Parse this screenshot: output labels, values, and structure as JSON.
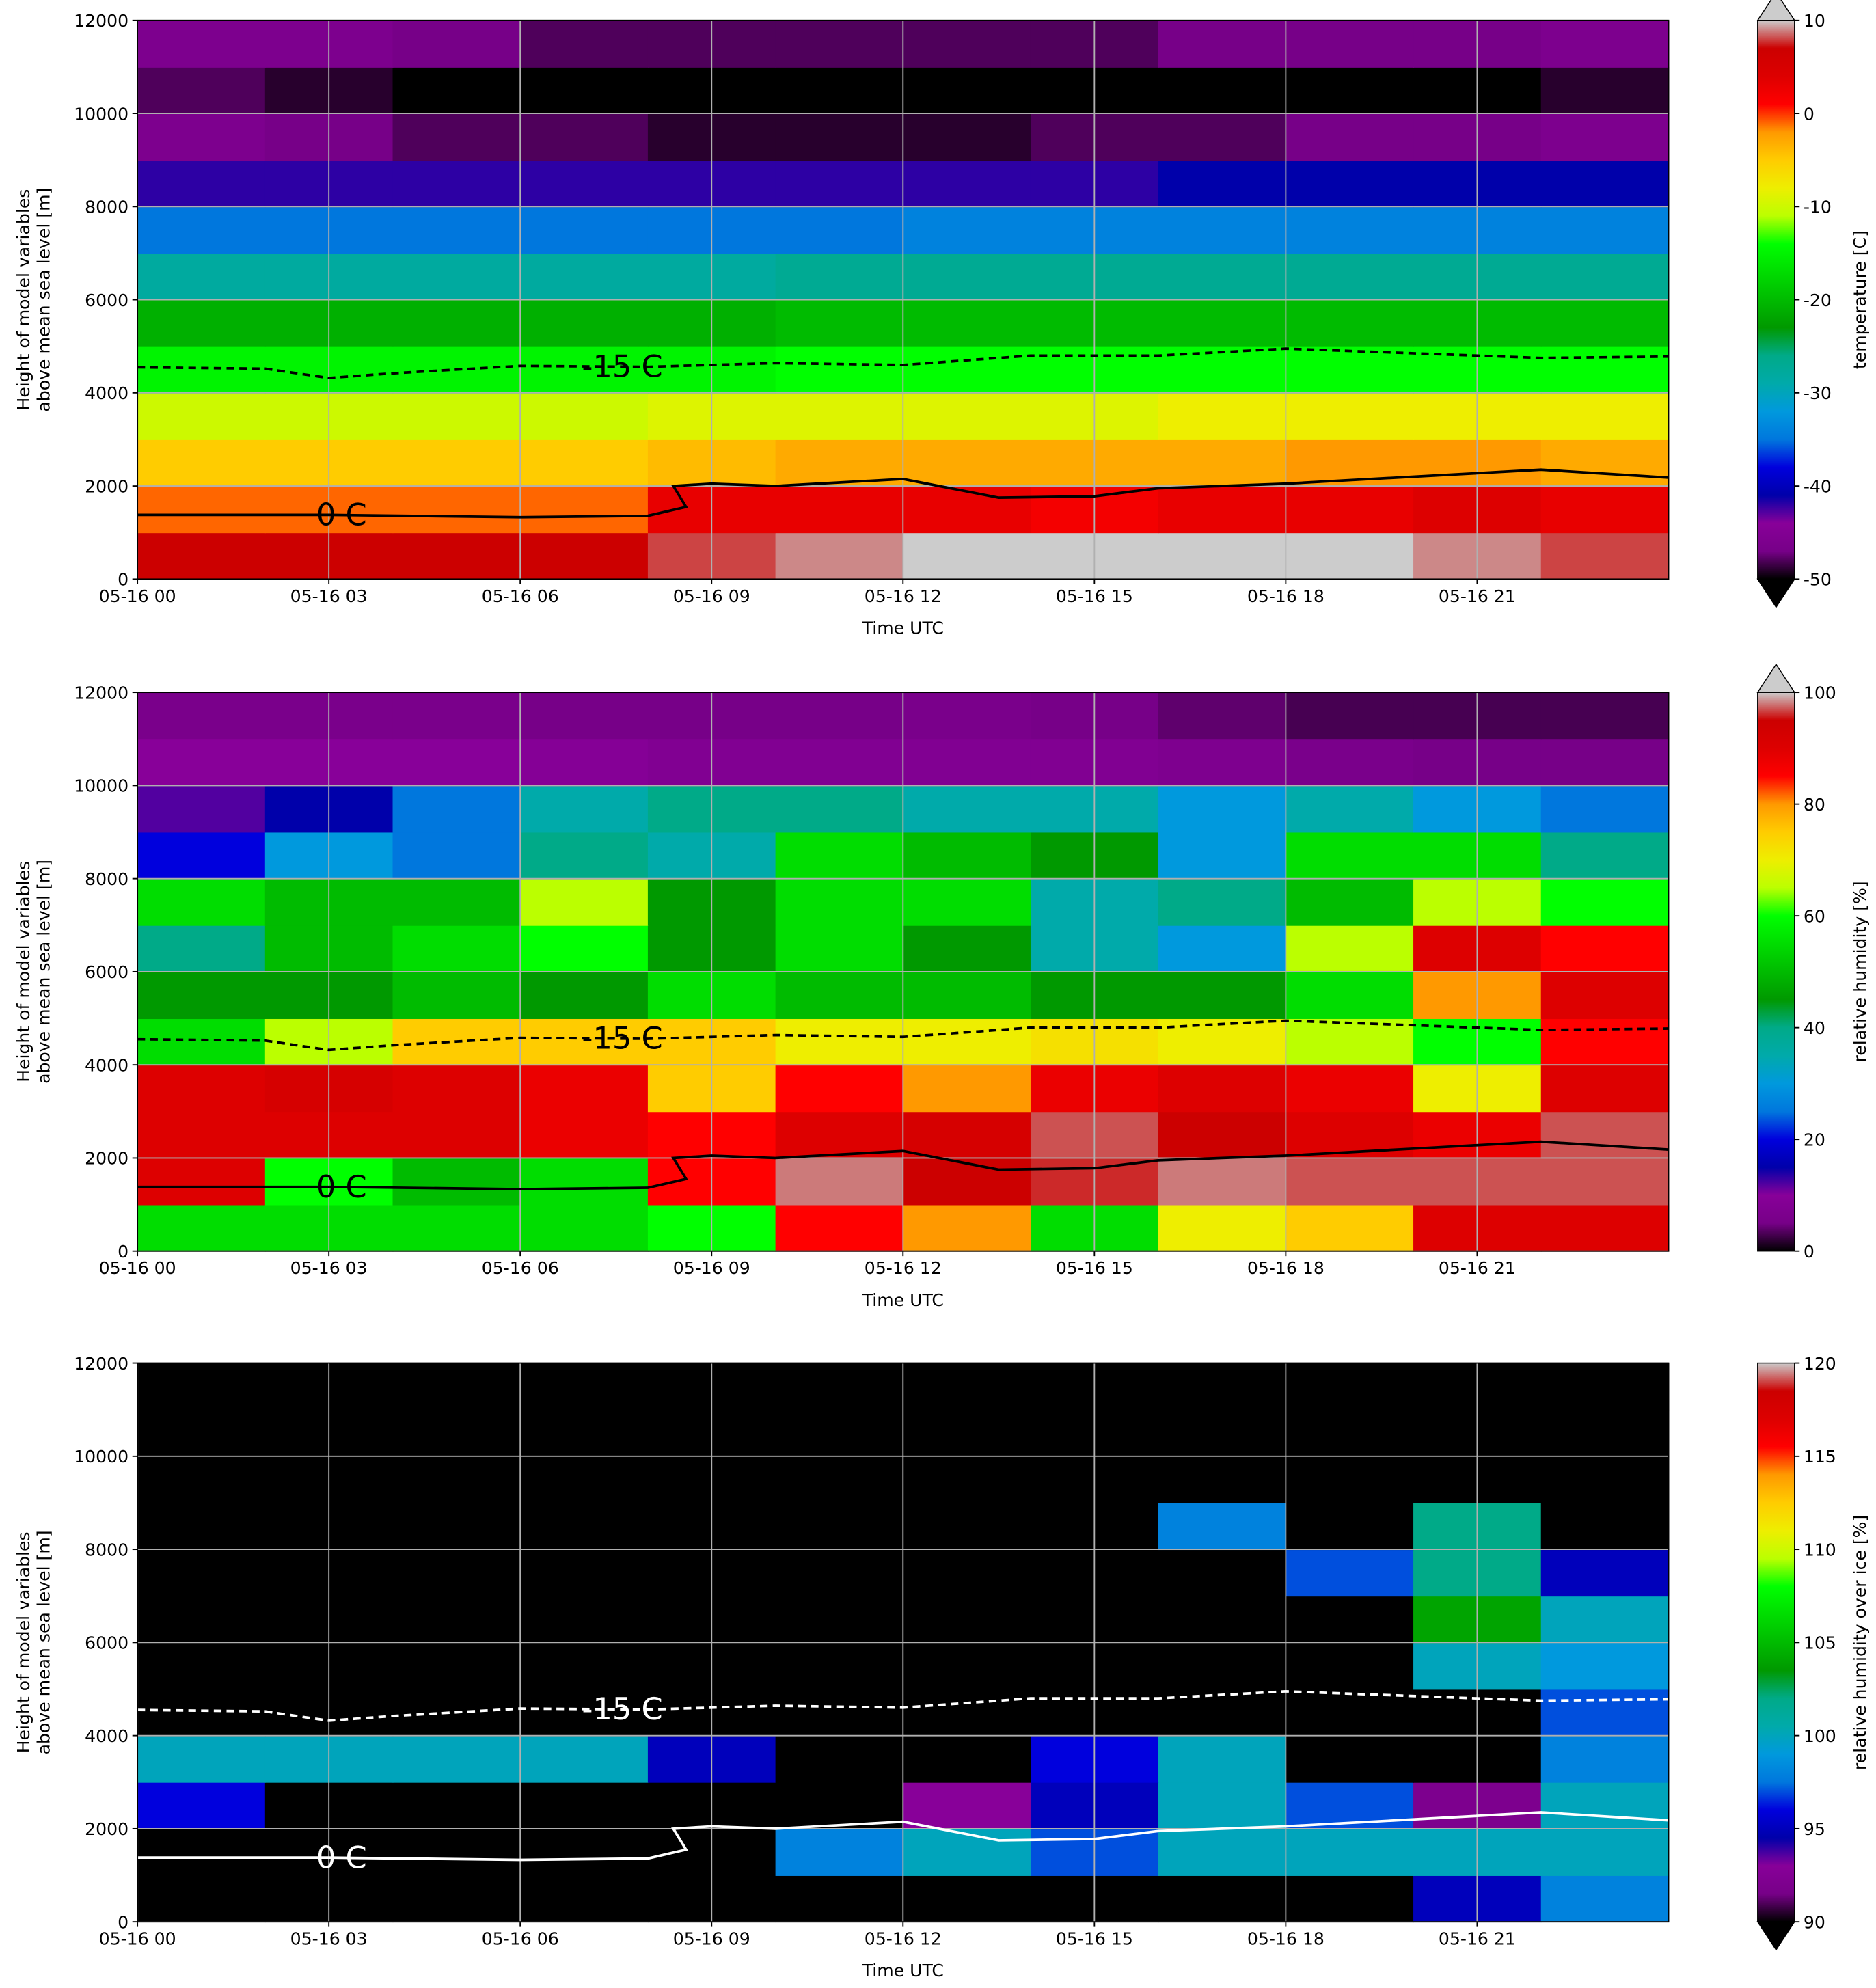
{
  "chart_data": [
    {
      "type": "heatmap",
      "x": [
        1,
        3,
        5,
        7,
        9,
        11,
        13,
        15,
        17,
        19,
        21,
        23
      ],
      "y": [
        500,
        1500,
        2500,
        3500,
        4500,
        5500,
        6500,
        7500,
        8500,
        9500,
        10500,
        11500
      ],
      "values": [
        [
          7,
          7,
          7,
          7,
          8,
          9,
          10,
          11,
          11,
          10,
          9,
          8
        ],
        [
          -1,
          -1,
          -1,
          -1,
          3,
          3,
          3,
          2,
          3,
          3,
          4,
          3
        ],
        [
          -5,
          -5,
          -5,
          -5,
          -4,
          -3,
          -3,
          -3,
          -3,
          -2,
          -2,
          -3
        ],
        [
          -10,
          -10,
          -10,
          -10,
          -9,
          -9,
          -9,
          -9,
          -8,
          -8,
          -8,
          -8
        ],
        [
          -15,
          -15,
          -15,
          -15,
          -15,
          -14,
          -14,
          -14,
          -14,
          -14,
          -14,
          -14
        ],
        [
          -21,
          -21,
          -21,
          -21,
          -21,
          -20,
          -20,
          -20,
          -20,
          -20,
          -20,
          -20
        ],
        [
          -28,
          -28,
          -28,
          -28,
          -28,
          -27,
          -27,
          -27,
          -27,
          -27,
          -27,
          -27
        ],
        [
          -35,
          -35,
          -35,
          -35,
          -35,
          -35,
          -34,
          -34,
          -34,
          -34,
          -34,
          -34
        ],
        [
          -42,
          -42,
          -42,
          -42,
          -42,
          -42,
          -42,
          -42,
          -41,
          -41,
          -41,
          -41
        ],
        [
          -46,
          -47,
          -48,
          -48,
          -49,
          -49,
          -49,
          -48,
          -48,
          -47,
          -47,
          -46
        ],
        [
          -48,
          -49,
          -50,
          -51,
          -52,
          -53,
          -53,
          -53,
          -52,
          -51,
          -50,
          -49
        ],
        [
          -46,
          -46,
          -47,
          -48,
          -48,
          -48,
          -48,
          -48,
          -47,
          -47,
          -47,
          -46
        ]
      ],
      "xlim": [
        0,
        24
      ],
      "ylim": [
        0,
        12000
      ],
      "xticks": [
        {
          "value": 0,
          "label": "05-16 00"
        },
        {
          "value": 3,
          "label": "05-16 03"
        },
        {
          "value": 6,
          "label": "05-16 06"
        },
        {
          "value": 9,
          "label": "05-16 09"
        },
        {
          "value": 12,
          "label": "05-16 12"
        },
        {
          "value": 15,
          "label": "05-16 15"
        },
        {
          "value": 18,
          "label": "05-16 18"
        },
        {
          "value": 21,
          "label": "05-16 21"
        }
      ],
      "yticks": [
        0,
        2000,
        4000,
        6000,
        8000,
        10000,
        12000
      ],
      "xlabel": "Time UTC",
      "ylabel": [
        "Height of model variables",
        "above mean sea level [m]"
      ],
      "grid": true,
      "colorbar": {
        "label": "temperature [C]",
        "lim": [
          -50,
          10
        ],
        "ticks": [
          -50,
          -40,
          -30,
          -20,
          -10,
          0,
          10
        ],
        "extend": "both",
        "colors": [
          "#000000",
          "#770088",
          "#880099",
          "#0000aa",
          "#0000dd",
          "#0077dd",
          "#0099dd",
          "#00aaaa",
          "#00aa88",
          "#009900",
          "#00bb00",
          "#00dd00",
          "#00ff00",
          "#bbff00",
          "#eeee00",
          "#ffcc00",
          "#ff9900",
          "#ff0000",
          "#dd0000",
          "#cc0000",
          "#cccccc"
        ],
        "under": "#000000",
        "over": "#cccccc"
      },
      "contours": [
        {
          "name": "-15 C",
          "color": "#000000",
          "dash": true,
          "x": [
            0,
            2,
            3,
            4,
            6,
            8,
            10,
            12,
            14,
            16,
            18,
            20,
            22,
            24
          ],
          "y": [
            4550,
            4520,
            4320,
            4420,
            4580,
            4560,
            4640,
            4600,
            4800,
            4800,
            4950,
            4850,
            4750,
            4780
          ]
        },
        {
          "name": "0 C",
          "color": "#000000",
          "dash": false,
          "x": [
            0,
            3,
            6,
            8,
            8.6,
            8.4,
            9,
            10,
            12,
            13.5,
            15,
            16,
            18,
            20,
            22,
            24
          ],
          "y": [
            1380,
            1380,
            1330,
            1360,
            1550,
            2000,
            2050,
            2000,
            2150,
            1750,
            1780,
            1950,
            2050,
            2200,
            2350,
            2180
          ]
        }
      ]
    },
    {
      "type": "heatmap",
      "x": [
        1,
        3,
        5,
        7,
        9,
        11,
        13,
        15,
        17,
        19,
        21,
        23
      ],
      "y": [
        500,
        1500,
        2500,
        3500,
        4500,
        5500,
        6500,
        7500,
        8500,
        9500,
        10500,
        11500
      ],
      "values": [
        [
          55,
          55,
          55,
          55,
          60,
          85,
          80,
          55,
          70,
          75,
          90,
          90
        ],
        [
          90,
          60,
          50,
          55,
          85,
          98,
          95,
          96,
          98,
          97,
          97,
          97
        ],
        [
          90,
          90,
          90,
          88,
          85,
          90,
          92,
          97,
          95,
          90,
          88,
          97
        ],
        [
          90,
          92,
          90,
          88,
          75,
          85,
          80,
          88,
          90,
          88,
          70,
          90
        ],
        [
          55,
          65,
          75,
          75,
          75,
          70,
          70,
          72,
          70,
          65,
          60,
          85
        ],
        [
          45,
          45,
          50,
          45,
          55,
          50,
          50,
          45,
          45,
          55,
          80,
          90
        ],
        [
          40,
          50,
          55,
          60,
          45,
          55,
          45,
          35,
          30,
          65,
          90,
          85
        ],
        [
          55,
          50,
          50,
          65,
          45,
          55,
          55,
          35,
          40,
          50,
          65,
          60
        ],
        [
          20,
          30,
          25,
          40,
          35,
          55,
          50,
          45,
          30,
          55,
          55,
          40
        ],
        [
          12,
          15,
          25,
          35,
          40,
          40,
          35,
          35,
          30,
          35,
          30,
          25
        ],
        [
          10,
          10,
          10,
          9,
          8,
          8,
          8,
          8,
          7,
          6,
          5,
          5
        ],
        [
          6,
          6,
          6,
          5,
          5,
          5,
          6,
          5,
          4,
          3,
          3,
          3
        ]
      ],
      "xlim": [
        0,
        24
      ],
      "ylim": [
        0,
        12000
      ],
      "xticks": [
        {
          "value": 0,
          "label": "05-16 00"
        },
        {
          "value": 3,
          "label": "05-16 03"
        },
        {
          "value": 6,
          "label": "05-16 06"
        },
        {
          "value": 9,
          "label": "05-16 09"
        },
        {
          "value": 12,
          "label": "05-16 12"
        },
        {
          "value": 15,
          "label": "05-16 15"
        },
        {
          "value": 18,
          "label": "05-16 18"
        },
        {
          "value": 21,
          "label": "05-16 21"
        }
      ],
      "yticks": [
        0,
        2000,
        4000,
        6000,
        8000,
        10000,
        12000
      ],
      "xlabel": "Time UTC",
      "ylabel": [
        "Height of model variables",
        "above mean sea level [m]"
      ],
      "grid": true,
      "colorbar": {
        "label": "relative humidity [%]",
        "lim": [
          0,
          100
        ],
        "ticks": [
          0,
          20,
          40,
          60,
          80,
          100
        ],
        "extend": "max",
        "colors": [
          "#000000",
          "#770088",
          "#880099",
          "#0000aa",
          "#0000dd",
          "#0077dd",
          "#0099dd",
          "#00aaaa",
          "#00aa88",
          "#009900",
          "#00bb00",
          "#00dd00",
          "#00ff00",
          "#bbff00",
          "#eeee00",
          "#ffcc00",
          "#ff9900",
          "#ff0000",
          "#dd0000",
          "#cc0000",
          "#cccccc"
        ],
        "over": "#cccccc"
      },
      "contours": [
        {
          "name": "-15 C",
          "color": "#000000",
          "dash": true,
          "x": [
            0,
            2,
            3,
            4,
            6,
            8,
            10,
            12,
            14,
            16,
            18,
            20,
            22,
            24
          ],
          "y": [
            4550,
            4520,
            4320,
            4420,
            4580,
            4560,
            4640,
            4600,
            4800,
            4800,
            4950,
            4850,
            4750,
            4780
          ]
        },
        {
          "name": "0 C",
          "color": "#000000",
          "dash": false,
          "x": [
            0,
            3,
            6,
            8,
            8.6,
            8.4,
            9,
            10,
            12,
            13.5,
            15,
            16,
            18,
            20,
            22,
            24
          ],
          "y": [
            1380,
            1380,
            1330,
            1360,
            1550,
            2000,
            2050,
            2000,
            2150,
            1750,
            1780,
            1950,
            2050,
            2200,
            2350,
            2180
          ]
        }
      ]
    },
    {
      "type": "heatmap",
      "x": [
        1,
        3,
        5,
        7,
        9,
        11,
        13,
        15,
        17,
        19,
        21,
        23
      ],
      "y": [
        500,
        1500,
        2500,
        3500,
        4500,
        5500,
        6500,
        7500,
        8500,
        9500,
        10500,
        11500
      ],
      "values": [
        [
          80,
          80,
          80,
          80,
          80,
          80,
          80,
          80,
          80,
          80,
          95,
          98
        ],
        [
          80,
          80,
          80,
          80,
          80,
          98,
          100,
          97,
          100,
          100,
          100,
          100
        ],
        [
          96,
          80,
          80,
          80,
          80,
          80,
          93,
          95,
          100,
          97,
          92,
          100
        ],
        [
          100,
          100,
          100,
          100,
          95,
          80,
          80,
          96,
          100,
          80,
          80,
          98
        ],
        [
          80,
          80,
          80,
          80,
          80,
          80,
          80,
          80,
          80,
          80,
          80,
          97
        ],
        [
          80,
          80,
          80,
          80,
          80,
          80,
          80,
          80,
          80,
          80,
          100,
          99
        ],
        [
          80,
          80,
          80,
          80,
          80,
          80,
          80,
          80,
          80,
          80,
          104,
          100
        ],
        [
          80,
          80,
          80,
          80,
          80,
          80,
          80,
          80,
          80,
          97,
          102,
          95
        ],
        [
          80,
          80,
          80,
          80,
          80,
          80,
          80,
          80,
          98,
          80,
          102,
          80
        ],
        [
          80,
          80,
          80,
          80,
          80,
          80,
          80,
          80,
          80,
          80,
          80,
          80
        ],
        [
          80,
          80,
          80,
          80,
          80,
          80,
          80,
          80,
          80,
          80,
          80,
          80
        ],
        [
          80,
          80,
          80,
          80,
          80,
          80,
          80,
          80,
          80,
          80,
          80,
          80
        ]
      ],
      "xlim": [
        0,
        24
      ],
      "ylim": [
        0,
        12000
      ],
      "xticks": [
        {
          "value": 0,
          "label": "05-16 00"
        },
        {
          "value": 3,
          "label": "05-16 03"
        },
        {
          "value": 6,
          "label": "05-16 06"
        },
        {
          "value": 9,
          "label": "05-16 09"
        },
        {
          "value": 12,
          "label": "05-16 12"
        },
        {
          "value": 15,
          "label": "05-16 15"
        },
        {
          "value": 18,
          "label": "05-16 18"
        },
        {
          "value": 21,
          "label": "05-16 21"
        }
      ],
      "yticks": [
        0,
        2000,
        4000,
        6000,
        8000,
        10000,
        12000
      ],
      "xlabel": "Time UTC",
      "ylabel": [
        "Height of model variables",
        "above mean sea level [m]"
      ],
      "grid": true,
      "colorbar": {
        "label": "relative humidity over ice [%]",
        "lim": [
          90,
          120
        ],
        "ticks": [
          90,
          95,
          100,
          105,
          110,
          115,
          120
        ],
        "extend": "min",
        "colors": [
          "#000000",
          "#770088",
          "#880099",
          "#0000aa",
          "#0000dd",
          "#0077dd",
          "#0099dd",
          "#00aaaa",
          "#00aa88",
          "#009900",
          "#00bb00",
          "#00dd00",
          "#00ff00",
          "#bbff00",
          "#eeee00",
          "#ffcc00",
          "#ff9900",
          "#ff0000",
          "#dd0000",
          "#cc0000",
          "#cccccc"
        ],
        "under": "#000000"
      },
      "contours": [
        {
          "name": "-15 C",
          "color": "#ffffff",
          "dash": true,
          "x": [
            0,
            2,
            3,
            4,
            6,
            8,
            10,
            12,
            14,
            16,
            18,
            20,
            22,
            24
          ],
          "y": [
            4550,
            4520,
            4320,
            4420,
            4580,
            4560,
            4640,
            4600,
            4800,
            4800,
            4950,
            4850,
            4750,
            4780
          ]
        },
        {
          "name": "0 C",
          "color": "#ffffff",
          "dash": false,
          "x": [
            0,
            3,
            6,
            8,
            8.6,
            8.4,
            9,
            10,
            12,
            13.5,
            15,
            16,
            18,
            20,
            22,
            24
          ],
          "y": [
            1380,
            1380,
            1330,
            1360,
            1550,
            2000,
            2050,
            2000,
            2150,
            1750,
            1780,
            1950,
            2050,
            2200,
            2350,
            2180
          ]
        }
      ]
    }
  ]
}
